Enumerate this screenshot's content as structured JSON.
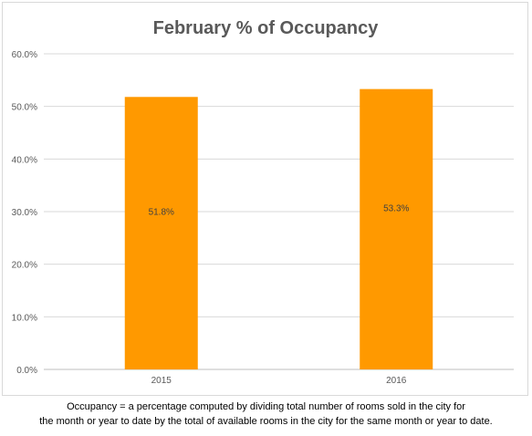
{
  "chart_data": {
    "type": "bar",
    "title": "February % of Occupancy",
    "categories": [
      "2015",
      "2016"
    ],
    "values": [
      51.8,
      53.3
    ],
    "data_labels": [
      "51.8%",
      "53.3%"
    ],
    "ylim": [
      0,
      60
    ],
    "yticks": [
      "0.0%",
      "10.0%",
      "20.0%",
      "30.0%",
      "40.0%",
      "50.0%",
      "60.0%"
    ],
    "xlabel": "",
    "ylabel": "",
    "grid": true,
    "legend": "none",
    "bar_color": "#ff9900"
  },
  "footnote": {
    "line1": "Occupancy = a percentage computed by dividing total number of rooms sold in the city for",
    "line2": "the month or year to date by the total of available rooms in the city for the same month or year to date."
  }
}
